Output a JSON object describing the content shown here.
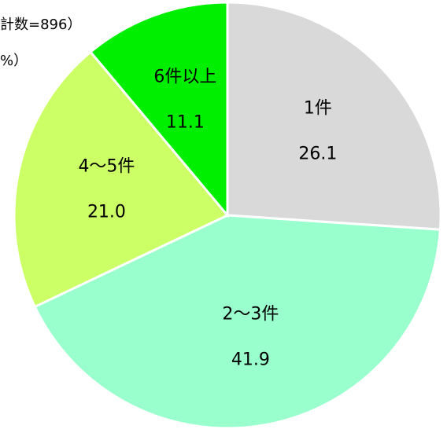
{
  "chart_data": {
    "type": "pie",
    "notes": [
      "計数=896）",
      "%）"
    ],
    "categories": [
      "1件",
      "2〜3件",
      "4〜5件",
      "6件以上"
    ],
    "values": [
      26.1,
      41.9,
      21.0,
      11.1
    ],
    "value_labels": [
      "26.1",
      "41.9",
      "21.0",
      "11.1"
    ],
    "colors": [
      "#d9d9d9",
      "#99ffcc",
      "#ccff66",
      "#00ee00"
    ]
  }
}
